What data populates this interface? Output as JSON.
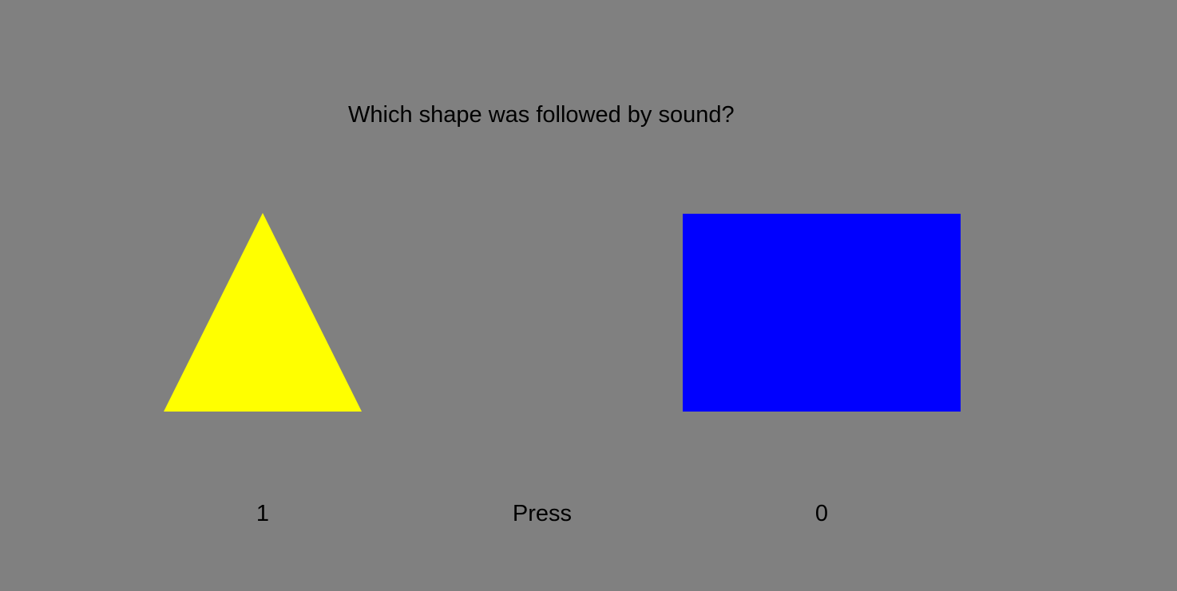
{
  "prompt": {
    "question": "Which shape was followed by sound?"
  },
  "options": {
    "left": {
      "shape": "triangle",
      "color": "#FFFF00",
      "key_label": "1"
    },
    "right": {
      "shape": "rectangle",
      "color": "#0000FF",
      "key_label": "0"
    }
  },
  "instruction": {
    "press_label": "Press"
  },
  "colors": {
    "background": "#808080",
    "text": "#000000"
  }
}
